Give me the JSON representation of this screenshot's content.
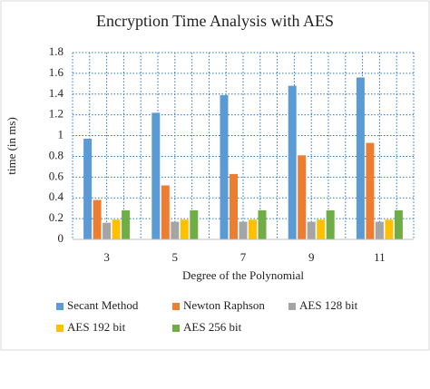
{
  "chart_data": {
    "type": "bar",
    "title": "Encryption Time Analysis with AES",
    "y_label": "time (in ms)",
    "x_label": "Degree of the Polynomial",
    "categories": [
      "3",
      "5",
      "7",
      "9",
      "11"
    ],
    "series": [
      {
        "name": "Secant Method",
        "color": "#5b9bd5",
        "values": [
          0.97,
          1.22,
          1.39,
          1.48,
          1.56
        ]
      },
      {
        "name": "Newton Raphson",
        "color": "#ed7d31",
        "values": [
          0.38,
          0.52,
          0.63,
          0.81,
          0.93
        ]
      },
      {
        "name": "AES 128 bit",
        "color": "#a5a5a5",
        "values": [
          0.16,
          0.17,
          0.17,
          0.17,
          0.17
        ]
      },
      {
        "name": "AES 192 bit",
        "color": "#ffc000",
        "values": [
          0.19,
          0.19,
          0.19,
          0.19,
          0.19
        ]
      },
      {
        "name": "AES 256 bit",
        "color": "#70ad47",
        "values": [
          0.28,
          0.28,
          0.28,
          0.28,
          0.28
        ]
      }
    ],
    "ylim": [
      0,
      1.8
    ],
    "yticks": [
      0,
      0.2,
      0.4,
      0.6,
      0.8,
      1,
      1.2,
      1.4,
      1.6,
      1.8
    ],
    "grid": true
  }
}
